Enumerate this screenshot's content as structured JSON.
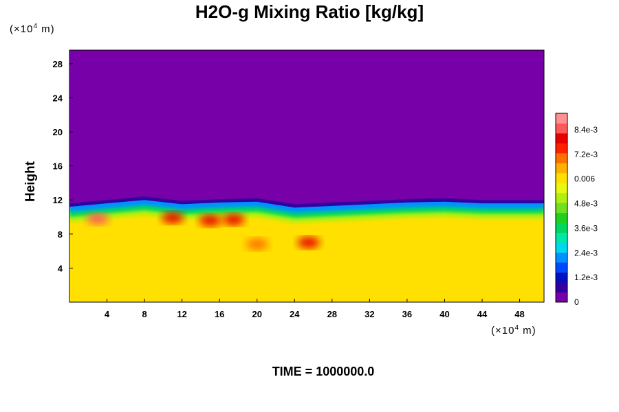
{
  "chart_data": {
    "type": "heatmap",
    "title": "H2O-g Mixing Ratio [kg/kg]",
    "ylabel": "Height",
    "x_unit": "(×10⁴ m)",
    "y_unit": "(×10⁴ m)",
    "footer": "TIME = 1000000.0",
    "xlim": [
      0,
      50.6
    ],
    "ylim": [
      0,
      29.6
    ],
    "x_ticks": [
      "4",
      "8",
      "12",
      "16",
      "20",
      "24",
      "28",
      "32",
      "36",
      "40",
      "44",
      "48"
    ],
    "x_tick_values": [
      4,
      8,
      12,
      16,
      20,
      24,
      28,
      32,
      36,
      40,
      44,
      48
    ],
    "y_ticks": [
      "4",
      "8",
      "12",
      "16",
      "20",
      "24",
      "28"
    ],
    "y_tick_values": [
      4,
      8,
      12,
      16,
      20,
      24,
      28
    ],
    "fields": {
      "upper_layer_value": 0,
      "lower_layer_value": 0.0062,
      "interface_height_approx": 12,
      "interface_profile": [
        {
          "x": 0,
          "y": 11.6
        },
        {
          "x": 4,
          "y": 12.0
        },
        {
          "x": 8,
          "y": 12.4
        },
        {
          "x": 12,
          "y": 11.9
        },
        {
          "x": 16,
          "y": 12.1
        },
        {
          "x": 20,
          "y": 12.2
        },
        {
          "x": 24,
          "y": 11.5
        },
        {
          "x": 28,
          "y": 11.7
        },
        {
          "x": 32,
          "y": 11.9
        },
        {
          "x": 36,
          "y": 12.1
        },
        {
          "x": 40,
          "y": 12.2
        },
        {
          "x": 44,
          "y": 12.0
        },
        {
          "x": 48,
          "y": 12.0
        },
        {
          "x": 50.6,
          "y": 12.0
        }
      ],
      "high_value_patches": [
        {
          "x": 3,
          "y": 9.8,
          "value": 0.0084
        },
        {
          "x": 11,
          "y": 9.9,
          "value": 0.0078
        },
        {
          "x": 15,
          "y": 9.6,
          "value": 0.0078
        },
        {
          "x": 17.5,
          "y": 9.7,
          "value": 0.0078
        },
        {
          "x": 20,
          "y": 6.8,
          "value": 0.0072
        },
        {
          "x": 25.5,
          "y": 7.0,
          "value": 0.0078
        }
      ]
    },
    "colorbar": {
      "min": 0,
      "max": 0.0092,
      "tick_labels": [
        "0",
        "1.2e-3",
        "2.4e-3",
        "3.6e-3",
        "4.8e-3",
        "0.006",
        "7.2e-3",
        "8.4e-3"
      ],
      "tick_values": [
        0,
        0.0012,
        0.0024,
        0.0036,
        0.0048,
        0.006,
        0.0072,
        0.0084
      ],
      "colors": [
        "#7800a8",
        "#3000a0",
        "#0010c0",
        "#0048ff",
        "#0090ff",
        "#00d8f0",
        "#00e8a8",
        "#00d860",
        "#20d020",
        "#70e020",
        "#b0f010",
        "#e8f810",
        "#ffe000",
        "#ffb000",
        "#ff7000",
        "#ff2000",
        "#e80000",
        "#ff5858",
        "#ff9090"
      ]
    },
    "grid": false,
    "legend": "colorbar-right"
  }
}
